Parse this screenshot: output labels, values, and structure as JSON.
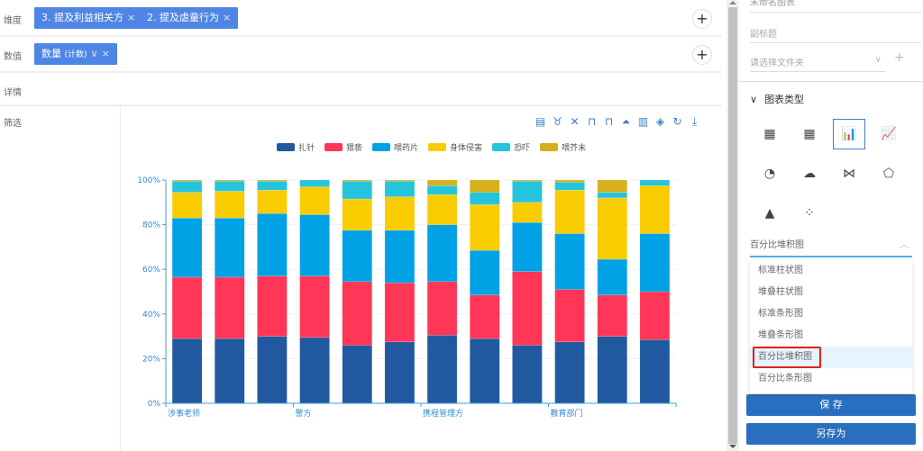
{
  "config": {
    "dimension": {
      "label": "维度",
      "tags": [
        {
          "label": "3. 提及利益相关方"
        },
        {
          "label": "2. 提及虐童行为"
        }
      ]
    },
    "value": {
      "label": "数值",
      "tags": [
        {
          "label": "数量",
          "sub": "(计数)"
        }
      ]
    },
    "details": {
      "label": "详情"
    },
    "filter": {
      "label": "筛选"
    },
    "remove_glyph": "×",
    "dropdown_glyph": "∨",
    "plus_glyph": "+"
  },
  "toolbar": {
    "icons": [
      "data-view-icon",
      "magic-type-icon",
      "brush-icon",
      "restore-zoom-icon",
      "zoom-back-icon",
      "line-chart-icon",
      "bar-chart-icon",
      "stack-icon",
      "refresh-icon",
      "download-icon"
    ],
    "glyphs": [
      "▤",
      "♉",
      "✕",
      "⊓",
      "⊓",
      "⏶",
      "▥",
      "◈",
      "↻",
      "⤓"
    ]
  },
  "chart_data": {
    "type": "bar",
    "stacked": true,
    "percent": true,
    "title": "",
    "xlabel": "",
    "ylabel": "",
    "ylim": [
      0,
      100
    ],
    "yticks": [
      "0%",
      "20%",
      "40%",
      "60%",
      "80%",
      "100%"
    ],
    "xtick_labels": [
      {
        "label": "涉事老师",
        "index": 0
      },
      {
        "label": "警方",
        "index": 3
      },
      {
        "label": "携程管理方",
        "index": 6
      },
      {
        "label": "教育部门",
        "index": 9
      }
    ],
    "categories": [
      "1",
      "2",
      "3",
      "4",
      "5",
      "6",
      "7",
      "8",
      "9",
      "10",
      "11",
      "12"
    ],
    "legend_position": "top",
    "series": [
      {
        "name": "扎针",
        "color": "#2159a0",
        "values": [
          29,
          29,
          30,
          29.5,
          26,
          27.5,
          30.5,
          29,
          26,
          27.5,
          30,
          28.5
        ]
      },
      {
        "name": "猥亵",
        "color": "#ff3658",
        "values": [
          27.5,
          27.5,
          27,
          27.5,
          28.5,
          26.5,
          24,
          19.5,
          33,
          23.5,
          18.5,
          21.5
        ]
      },
      {
        "name": "喂药片",
        "color": "#00a1e5",
        "values": [
          26.5,
          26.5,
          28,
          27.5,
          23,
          23.5,
          25.5,
          20,
          22,
          25,
          16,
          26
        ]
      },
      {
        "name": "身体侵害",
        "color": "#f9cc02",
        "values": [
          11.5,
          12,
          10.5,
          12.5,
          14,
          15,
          13.5,
          20.5,
          9,
          19.5,
          27.5,
          21.5
        ]
      },
      {
        "name": "恐吓",
        "color": "#24c4dc",
        "values": [
          5,
          4.5,
          4,
          3,
          8,
          7,
          4,
          5.5,
          9.5,
          3.5,
          2.5,
          2.5
        ]
      },
      {
        "name": "喂芥末",
        "color": "#d6b01b",
        "values": [
          0.5,
          0.5,
          0.5,
          0,
          0.5,
          0.5,
          2.5,
          5.5,
          0.5,
          1,
          5.5,
          0
        ]
      }
    ]
  },
  "right_panel": {
    "title_value": "未命名图表",
    "subtitle_placeholder": "副标题",
    "folder_placeholder": "请选择文件夹",
    "section_title": "图表类型",
    "chart_types": [
      {
        "name": "table-icon",
        "glyph": "▦"
      },
      {
        "name": "pivot-table-icon",
        "glyph": "▦"
      },
      {
        "name": "bar-chart-icon",
        "glyph": "📊",
        "selected": true
      },
      {
        "name": "line-chart-icon",
        "glyph": "📈"
      },
      {
        "name": "pie-chart-icon",
        "glyph": "◔"
      },
      {
        "name": "word-cloud-icon",
        "glyph": "☁"
      },
      {
        "name": "sankey-icon",
        "glyph": "⋈"
      },
      {
        "name": "radar-icon",
        "glyph": "⬠"
      },
      {
        "name": "funnel-icon",
        "glyph": "▲"
      },
      {
        "name": "scatter-icon",
        "glyph": "⁘"
      }
    ],
    "selected_type": "百分比堆积图",
    "options": [
      "标准柱状图",
      "堆叠柱状图",
      "标准条形图",
      "堆叠条形图",
      "百分比堆积图",
      "百分比条形图"
    ],
    "active_option_index": 4,
    "save_label": "保 存",
    "save_as_label": "另存为"
  }
}
